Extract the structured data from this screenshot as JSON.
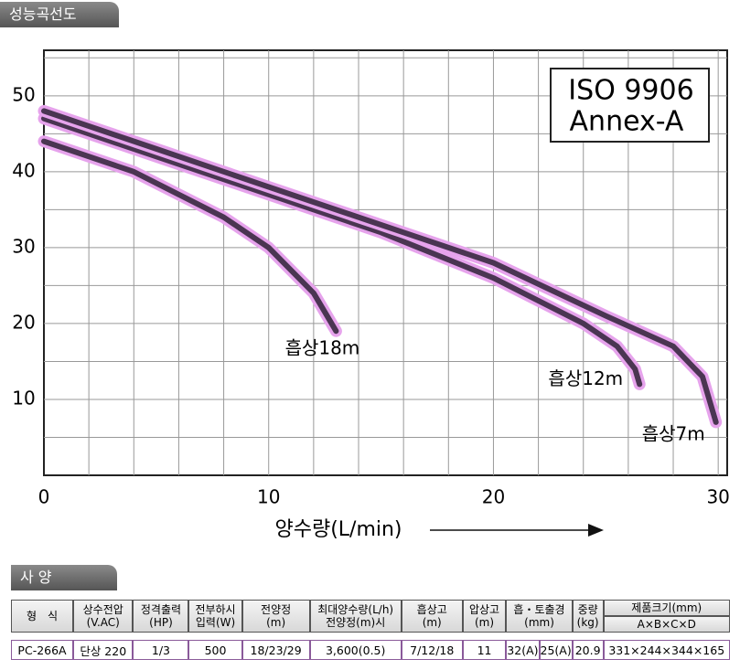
{
  "chart_data": {
    "type": "line",
    "tab_title": "성능곡선도",
    "x_label": "양수량(L/min)",
    "annotation_lines": [
      "ISO 9906",
      "Annex-A"
    ],
    "xlim": [
      0,
      30.4
    ],
    "ylim": [
      0,
      56
    ],
    "xticks": [
      0,
      10,
      20,
      30
    ],
    "yticks": [
      10,
      20,
      30,
      40,
      50
    ],
    "xgrid": [
      2,
      4,
      6,
      8,
      10,
      12,
      14,
      16,
      18,
      20,
      22,
      24,
      26,
      28,
      30
    ],
    "ygrid": [
      5,
      10,
      15,
      20,
      25,
      30,
      35,
      40,
      45,
      50,
      55
    ],
    "glow_color": "#e6a3ec",
    "series": [
      {
        "name": "흡상18m",
        "color": "#4a3552",
        "x": [
          0,
          4,
          8,
          10,
          12,
          13
        ],
        "values": [
          44,
          40,
          34,
          30,
          24,
          19
        ]
      },
      {
        "name": "흡상12m",
        "color": "#4a3552",
        "x": [
          0,
          5,
          10,
          15,
          20,
          24,
          25.5,
          26.3,
          26.5
        ],
        "values": [
          47,
          42,
          37,
          32,
          26,
          20,
          17,
          14,
          12
        ]
      },
      {
        "name": "흡상7m",
        "color": "#4a3552",
        "x": [
          0,
          5,
          10,
          15,
          20,
          25,
          28,
          29.3,
          29.9
        ],
        "values": [
          48,
          43,
          38,
          33,
          28,
          21,
          17,
          13,
          7
        ]
      }
    ]
  },
  "spec": {
    "tab_title": "사 양",
    "header_row1": [
      "형　식",
      "상수전압\n(V.AC)",
      "정격출력\n(HP)",
      "전부하시\n입력(W)",
      "전양정\n(m)",
      "최대양수량(L/h)\n전양정(m)시",
      "흡상고\n(m)",
      "압상고\n(m)",
      "흡・토출경\n(mm)",
      "중량\n(kg)",
      "제품크기(mm)"
    ],
    "header_row2": [
      "A×B×C×D"
    ],
    "row": [
      "PC-266A",
      "단상 220",
      "1/3",
      "500",
      "18/23/29",
      "3,600(0.5)",
      "7/12/18",
      "11",
      "32(A)",
      "25(A)",
      "20.9",
      "331×244×344×165"
    ]
  }
}
